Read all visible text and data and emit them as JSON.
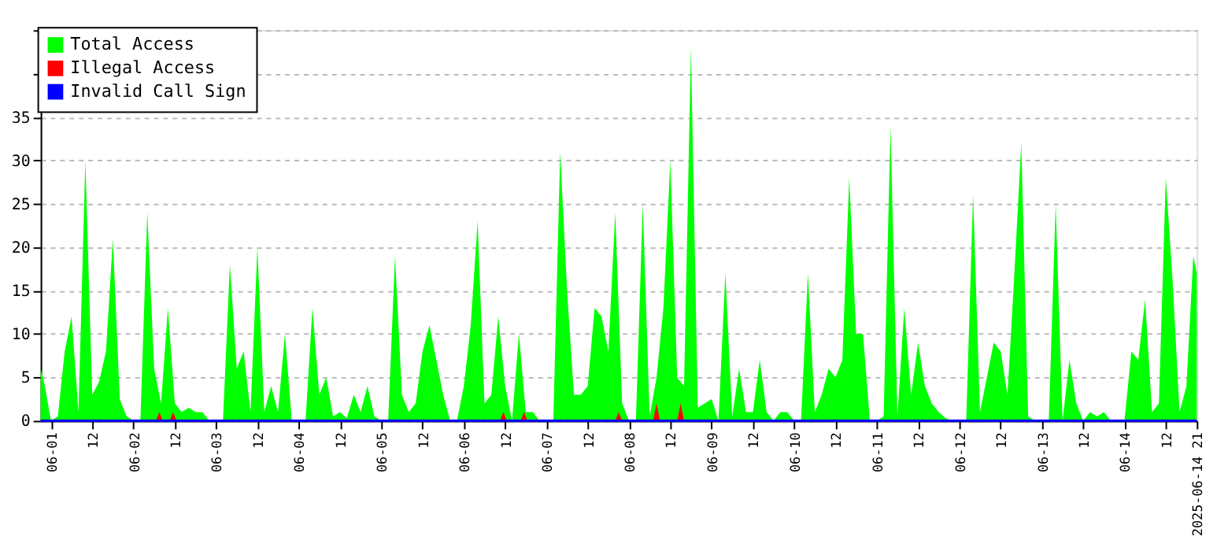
{
  "chart_data": {
    "type": "area",
    "x": [
      "2025-05-31T21:00",
      "2025-05-31T22:00",
      "2025-06-01T00:00",
      "2025-06-01T02:00",
      "2025-06-01T04:00",
      "2025-06-01T06:00",
      "2025-06-01T08:00",
      "2025-06-01T10:00",
      "2025-06-01T12:00",
      "2025-06-01T14:00",
      "2025-06-01T16:00",
      "2025-06-01T18:00",
      "2025-06-01T20:00",
      "2025-06-01T22:00",
      "2025-06-02T00:00",
      "2025-06-02T02:00",
      "2025-06-02T04:00",
      "2025-06-02T06:00",
      "2025-06-02T08:00",
      "2025-06-02T10:00",
      "2025-06-02T12:00",
      "2025-06-02T14:00",
      "2025-06-02T16:00",
      "2025-06-02T18:00",
      "2025-06-02T20:00",
      "2025-06-02T22:00",
      "2025-06-03T00:00",
      "2025-06-03T02:00",
      "2025-06-03T04:00",
      "2025-06-03T06:00",
      "2025-06-03T08:00",
      "2025-06-03T10:00",
      "2025-06-03T12:00",
      "2025-06-03T14:00",
      "2025-06-03T16:00",
      "2025-06-03T18:00",
      "2025-06-03T20:00",
      "2025-06-03T22:00",
      "2025-06-04T00:00",
      "2025-06-04T02:00",
      "2025-06-04T04:00",
      "2025-06-04T06:00",
      "2025-06-04T08:00",
      "2025-06-04T10:00",
      "2025-06-04T12:00",
      "2025-06-04T14:00",
      "2025-06-04T16:00",
      "2025-06-04T18:00",
      "2025-06-04T20:00",
      "2025-06-04T22:00",
      "2025-06-05T00:00",
      "2025-06-05T02:00",
      "2025-06-05T04:00",
      "2025-06-05T06:00",
      "2025-06-05T08:00",
      "2025-06-05T10:00",
      "2025-06-05T12:00",
      "2025-06-05T14:00",
      "2025-06-05T16:00",
      "2025-06-05T18:00",
      "2025-06-05T20:00",
      "2025-06-05T22:00",
      "2025-06-06T00:00",
      "2025-06-06T02:00",
      "2025-06-06T04:00",
      "2025-06-06T06:00",
      "2025-06-06T08:00",
      "2025-06-06T10:00",
      "2025-06-06T12:00",
      "2025-06-06T14:00",
      "2025-06-06T16:00",
      "2025-06-06T18:00",
      "2025-06-06T20:00",
      "2025-06-06T22:00",
      "2025-06-07T00:00",
      "2025-06-07T02:00",
      "2025-06-07T04:00",
      "2025-06-07T06:00",
      "2025-06-07T08:00",
      "2025-06-07T10:00",
      "2025-06-07T12:00",
      "2025-06-07T14:00",
      "2025-06-07T16:00",
      "2025-06-07T18:00",
      "2025-06-07T20:00",
      "2025-06-07T22:00",
      "2025-06-08T00:00",
      "2025-06-08T02:00",
      "2025-06-08T04:00",
      "2025-06-08T06:00",
      "2025-06-08T08:00",
      "2025-06-08T10:00",
      "2025-06-08T12:00",
      "2025-06-08T14:00",
      "2025-06-08T16:00",
      "2025-06-08T18:00",
      "2025-06-08T20:00",
      "2025-06-08T22:00",
      "2025-06-09T00:00",
      "2025-06-09T02:00",
      "2025-06-09T04:00",
      "2025-06-09T06:00",
      "2025-06-09T08:00",
      "2025-06-09T10:00",
      "2025-06-09T12:00",
      "2025-06-09T14:00",
      "2025-06-09T16:00",
      "2025-06-09T18:00",
      "2025-06-09T20:00",
      "2025-06-09T22:00",
      "2025-06-10T00:00",
      "2025-06-10T02:00",
      "2025-06-10T04:00",
      "2025-06-10T06:00",
      "2025-06-10T08:00",
      "2025-06-10T10:00",
      "2025-06-10T12:00",
      "2025-06-10T14:00",
      "2025-06-10T16:00",
      "2025-06-10T18:00",
      "2025-06-10T20:00",
      "2025-06-10T22:00",
      "2025-06-11T00:00",
      "2025-06-11T02:00",
      "2025-06-11T04:00",
      "2025-06-11T06:00",
      "2025-06-11T08:00",
      "2025-06-11T10:00",
      "2025-06-11T12:00",
      "2025-06-11T14:00",
      "2025-06-11T16:00",
      "2025-06-11T18:00",
      "2025-06-11T20:00",
      "2025-06-11T22:00",
      "2025-06-12T00:00",
      "2025-06-12T02:00",
      "2025-06-12T04:00",
      "2025-06-12T06:00",
      "2025-06-12T08:00",
      "2025-06-12T10:00",
      "2025-06-12T12:00",
      "2025-06-12T14:00",
      "2025-06-12T16:00",
      "2025-06-12T18:00",
      "2025-06-12T20:00",
      "2025-06-12T22:00",
      "2025-06-13T00:00",
      "2025-06-13T02:00",
      "2025-06-13T04:00",
      "2025-06-13T06:00",
      "2025-06-13T08:00",
      "2025-06-13T10:00",
      "2025-06-13T12:00",
      "2025-06-13T14:00",
      "2025-06-13T16:00",
      "2025-06-13T18:00",
      "2025-06-13T20:00",
      "2025-06-13T22:00",
      "2025-06-14T00:00",
      "2025-06-14T02:00",
      "2025-06-14T04:00",
      "2025-06-14T06:00",
      "2025-06-14T08:00",
      "2025-06-14T10:00",
      "2025-06-14T12:00",
      "2025-06-14T14:00",
      "2025-06-14T16:00",
      "2025-06-14T18:00",
      "2025-06-14T20:00",
      "2025-06-14T21:00"
    ],
    "series": [
      {
        "name": "Total Access",
        "color": "#00ff00",
        "values": [
          6,
          4.5,
          0,
          0.5,
          8,
          12,
          1,
          30,
          3,
          4.5,
          8,
          21,
          2.5,
          0.5,
          0,
          0,
          24,
          6,
          2,
          13,
          2,
          1,
          1.5,
          1,
          1,
          0,
          0,
          0,
          18,
          6,
          8,
          1,
          20,
          1,
          4,
          1,
          10,
          0,
          0,
          0,
          13,
          3,
          5,
          0.5,
          1,
          0.3,
          3,
          1,
          4,
          0.5,
          0,
          0,
          19,
          3,
          1,
          2,
          8,
          11,
          7,
          3,
          0,
          0,
          4,
          11,
          23,
          2,
          3,
          12,
          4,
          0,
          10,
          1,
          1,
          0,
          0,
          0,
          31,
          15,
          3,
          3,
          4,
          13,
          12,
          8,
          24,
          2,
          0,
          0,
          25,
          0.5,
          5,
          13,
          30,
          5,
          4,
          43,
          1.5,
          2,
          2.5,
          0,
          17,
          0.5,
          6,
          1,
          1,
          7,
          1,
          0,
          1,
          1,
          0,
          0,
          17,
          1,
          3,
          6,
          5,
          7,
          28,
          10,
          10,
          0,
          0,
          0.5,
          34,
          0.5,
          13,
          3,
          9,
          4,
          2,
          1,
          0.3,
          0,
          0,
          0,
          26,
          1,
          5,
          9,
          8,
          3,
          17,
          32,
          0.5,
          0,
          0,
          0,
          25,
          0,
          7,
          2,
          0,
          1,
          0.5,
          1,
          0,
          0,
          0,
          8,
          7,
          14,
          1,
          2,
          28,
          16,
          1,
          4,
          19,
          17
        ]
      },
      {
        "name": "Illegal Access",
        "color": "#ff0000",
        "type": "area",
        "x": [
          "2025-06-02T06:30",
          "2025-06-02T07:30",
          "2025-06-02T08:30",
          "2025-06-02T10:30",
          "2025-06-02T11:30",
          "2025-06-02T12:30",
          "2025-06-06T10:30",
          "2025-06-06T11:30",
          "2025-06-06T12:30",
          "2025-06-06T16:30",
          "2025-06-06T17:30",
          "2025-06-06T18:30",
          "2025-06-07T20:00",
          "2025-06-07T21:00",
          "2025-06-07T22:00",
          "2025-06-08T07:00",
          "2025-06-08T08:00",
          "2025-06-08T09:00",
          "2025-06-08T14:00",
          "2025-06-08T15:00",
          "2025-06-08T16:00"
        ],
        "values": [
          0,
          1,
          0,
          0,
          1,
          0,
          0,
          1,
          0,
          0,
          1,
          0,
          0,
          1,
          0,
          0,
          2,
          0,
          0,
          2,
          0
        ]
      },
      {
        "name": "Invalid Call Sign",
        "color": "#0000ff",
        "type": "line",
        "x": [
          "2025-05-31T21:00",
          "2025-06-14T21:00"
        ],
        "values": [
          0,
          0
        ]
      }
    ],
    "xlim": [
      "2025-05-31T21:00",
      "2025-06-14T21:00"
    ],
    "xticks": [
      {
        "value": "2025-06-01T00:00",
        "label": "06-01"
      },
      {
        "value": "2025-06-01T12:00",
        "label": "12"
      },
      {
        "value": "2025-06-02T00:00",
        "label": "06-02"
      },
      {
        "value": "2025-06-02T12:00",
        "label": "12"
      },
      {
        "value": "2025-06-03T00:00",
        "label": "06-03"
      },
      {
        "value": "2025-06-03T12:00",
        "label": "12"
      },
      {
        "value": "2025-06-04T00:00",
        "label": "06-04"
      },
      {
        "value": "2025-06-04T12:00",
        "label": "12"
      },
      {
        "value": "2025-06-05T00:00",
        "label": "06-05"
      },
      {
        "value": "2025-06-05T12:00",
        "label": "12"
      },
      {
        "value": "2025-06-06T00:00",
        "label": "06-06"
      },
      {
        "value": "2025-06-06T12:00",
        "label": "12"
      },
      {
        "value": "2025-06-07T00:00",
        "label": "06-07"
      },
      {
        "value": "2025-06-07T12:00",
        "label": "12"
      },
      {
        "value": "2025-06-08T00:00",
        "label": "06-08"
      },
      {
        "value": "2025-06-08T12:00",
        "label": "12"
      },
      {
        "value": "2025-06-09T00:00",
        "label": "06-09"
      },
      {
        "value": "2025-06-09T12:00",
        "label": "12"
      },
      {
        "value": "2025-06-10T00:00",
        "label": "06-10"
      },
      {
        "value": "2025-06-10T12:00",
        "label": "12"
      },
      {
        "value": "2025-06-11T00:00",
        "label": "06-11"
      },
      {
        "value": "2025-06-11T12:00",
        "label": "12"
      },
      {
        "value": "2025-06-12T00:00",
        "label": "06-12"
      },
      {
        "value": "2025-06-12T12:00",
        "label": "12"
      },
      {
        "value": "2025-06-13T00:00",
        "label": "06-13"
      },
      {
        "value": "2025-06-13T12:00",
        "label": "12"
      },
      {
        "value": "2025-06-14T00:00",
        "label": "06-14"
      },
      {
        "value": "2025-06-14T12:00",
        "label": "12"
      },
      {
        "value": "2025-06-14T21:00",
        "label": "2025-06-14 21"
      }
    ],
    "ylim": [
      0,
      45
    ],
    "yticks": [
      0,
      5,
      10,
      15,
      20,
      25,
      30,
      35,
      {
        "value": 40,
        "label": null
      },
      {
        "value": 45,
        "label": null
      }
    ],
    "grid": "y",
    "legend": "top left"
  }
}
